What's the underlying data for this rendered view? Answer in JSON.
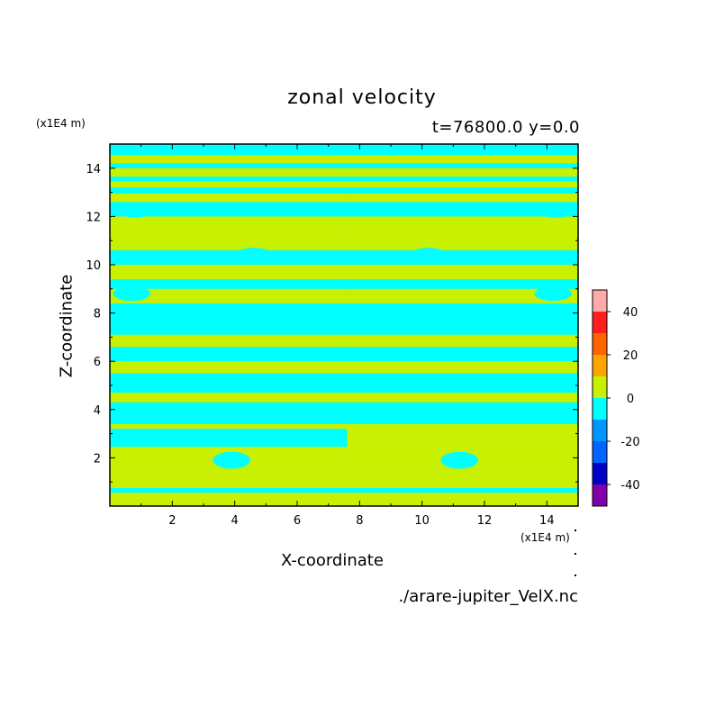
{
  "chart_data": {
    "type": "heatmap",
    "title": "zonal velocity",
    "subtitle": "t=76800.0 y=0.0",
    "xlabel": "X-coordinate",
    "ylabel": "Z-coordinate",
    "xunit": "(x1E4 m)",
    "yunit": "(x1E4 m)",
    "xlim": [
      0,
      15
    ],
    "ylim": [
      0,
      15
    ],
    "xticks": [
      2,
      4,
      6,
      8,
      10,
      12,
      14
    ],
    "yticks": [
      2,
      4,
      6,
      8,
      10,
      12,
      14
    ],
    "source": "./arare-jupiter_VelX.nc",
    "discontinuity_x": 7.6,
    "colorbar": {
      "levels": [
        {
          "from": 40,
          "to": 50,
          "color": "#ffaaaa"
        },
        {
          "from": 30,
          "to": 40,
          "color": "#ff1e1e"
        },
        {
          "from": 20,
          "to": 30,
          "color": "#ff6400"
        },
        {
          "from": 10,
          "to": 20,
          "color": "#ffa500"
        },
        {
          "from": 0,
          "to": 10,
          "color": "#c8f000"
        },
        {
          "from": -10,
          "to": 0,
          "color": "#00ffff"
        },
        {
          "from": -20,
          "to": -10,
          "color": "#0096ff"
        },
        {
          "from": -30,
          "to": -20,
          "color": "#0064ff"
        },
        {
          "from": -40,
          "to": -30,
          "color": "#0000c8"
        },
        {
          "from": -50,
          "to": -40,
          "color": "#8200aa"
        }
      ],
      "tick_labels": [
        "40",
        "20",
        "0",
        "-20",
        "-40"
      ],
      "tick_values": [
        40,
        20,
        0,
        -20,
        -40
      ]
    },
    "regions": {
      "background_color": "#00ffff",
      "positive_color": "#c8f000",
      "left_bands": [
        [
          0.0,
          0.55
        ],
        [
          0.75,
          1.55
        ],
        [
          1.55,
          2.45
        ],
        [
          3.2,
          3.4
        ],
        [
          4.3,
          4.7
        ],
        [
          5.5,
          6.0
        ],
        [
          6.6,
          7.1
        ],
        [
          8.4,
          9.0
        ],
        [
          9.4,
          10.0
        ],
        [
          10.6,
          12.0
        ],
        [
          12.6,
          12.95
        ],
        [
          13.2,
          13.45
        ],
        [
          13.65,
          14.0
        ],
        [
          14.2,
          14.55
        ]
      ],
      "right_bands": [
        [
          0.0,
          0.55
        ],
        [
          0.75,
          1.55
        ],
        [
          1.55,
          2.45
        ],
        [
          2.45,
          3.4
        ],
        [
          4.3,
          4.7
        ],
        [
          5.5,
          6.0
        ],
        [
          6.6,
          7.1
        ],
        [
          8.4,
          9.0
        ],
        [
          9.4,
          10.0
        ],
        [
          10.6,
          12.0
        ],
        [
          12.6,
          12.95
        ],
        [
          13.2,
          13.45
        ],
        [
          13.65,
          14.0
        ],
        [
          14.2,
          14.55
        ]
      ],
      "cyan_blobs": [
        {
          "x": 3.5,
          "z": 7.6,
          "rx": 1.6,
          "rz": 0.45
        },
        {
          "x": 11.4,
          "z": 7.6,
          "rx": 1.7,
          "rz": 0.45
        },
        {
          "x": 3.9,
          "z": 1.9,
          "rx": 0.6,
          "rz": 0.35
        },
        {
          "x": 11.2,
          "z": 1.9,
          "rx": 0.6,
          "rz": 0.35
        },
        {
          "x": 4.6,
          "z": 10.5,
          "rx": 0.5,
          "rz": 0.2
        },
        {
          "x": 10.2,
          "z": 10.5,
          "rx": 0.5,
          "rz": 0.2
        },
        {
          "x": 0.8,
          "z": 12.2,
          "rx": 0.5,
          "rz": 0.25
        },
        {
          "x": 14.3,
          "z": 12.2,
          "rx": 0.5,
          "rz": 0.25
        },
        {
          "x": 0.7,
          "z": 8.8,
          "rx": 0.6,
          "rz": 0.3
        },
        {
          "x": 14.2,
          "z": 8.8,
          "rx": 0.6,
          "rz": 0.3
        }
      ]
    }
  }
}
